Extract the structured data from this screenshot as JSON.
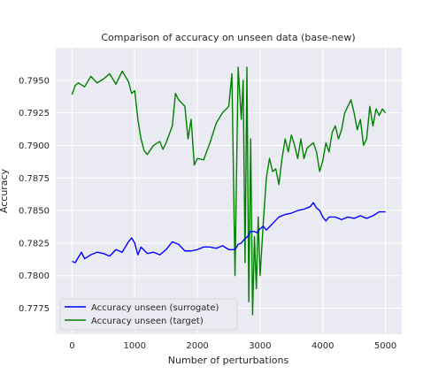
{
  "chart_data": {
    "type": "line",
    "title": "Comparison of accuracy on unseen data (base-new)",
    "xlabel": "Number of perturbations",
    "ylabel": "Accuracy",
    "xlim": [
      -260,
      5260
    ],
    "ylim": [
      0.7755,
      0.7975
    ],
    "xticks": [
      0,
      1000,
      2000,
      3000,
      4000,
      5000
    ],
    "yticks": [
      0.7775,
      0.78,
      0.7825,
      0.785,
      0.7875,
      0.79,
      0.7925,
      0.795
    ],
    "ytick_labels": [
      "0.7775",
      "0.7800",
      "0.7825",
      "0.7850",
      "0.7875",
      "0.7900",
      "0.7925",
      "0.7950"
    ],
    "grid": true,
    "legend_position": "lower-left",
    "series": [
      {
        "name": "Accuracy unseen (surrogate)",
        "color": "#0000ff",
        "x": [
          0,
          50,
          100,
          150,
          200,
          300,
          400,
          500,
          600,
          700,
          800,
          900,
          950,
          1000,
          1050,
          1100,
          1200,
          1300,
          1400,
          1500,
          1600,
          1700,
          1800,
          1900,
          2000,
          2100,
          2200,
          2300,
          2400,
          2500,
          2600,
          2650,
          2700,
          2750,
          2800,
          2850,
          2900,
          2950,
          3000,
          3050,
          3100,
          3200,
          3300,
          3400,
          3500,
          3600,
          3700,
          3800,
          3850,
          3900,
          3950,
          4000,
          4050,
          4100,
          4200,
          4300,
          4400,
          4500,
          4600,
          4700,
          4800,
          4900,
          5000
        ],
        "values": [
          0.7811,
          0.781,
          0.7814,
          0.7818,
          0.7813,
          0.7816,
          0.7818,
          0.7817,
          0.7815,
          0.782,
          0.7818,
          0.7826,
          0.7829,
          0.7825,
          0.7816,
          0.7822,
          0.7817,
          0.7818,
          0.7816,
          0.782,
          0.7826,
          0.7824,
          0.7819,
          0.7819,
          0.782,
          0.7822,
          0.7822,
          0.7821,
          0.7823,
          0.782,
          0.782,
          0.7824,
          0.7825,
          0.7828,
          0.783,
          0.7834,
          0.7834,
          0.7833,
          0.7836,
          0.7838,
          0.7835,
          0.784,
          0.7845,
          0.7847,
          0.7848,
          0.785,
          0.7851,
          0.7853,
          0.7856,
          0.7852,
          0.785,
          0.7845,
          0.7842,
          0.7845,
          0.7845,
          0.7843,
          0.7845,
          0.7844,
          0.7846,
          0.7844,
          0.7846,
          0.7849,
          0.7849
        ]
      },
      {
        "name": "Accuracy unseen (target)",
        "color": "#008000",
        "x": [
          0,
          50,
          100,
          200,
          300,
          400,
          500,
          600,
          700,
          800,
          900,
          950,
          1000,
          1050,
          1100,
          1150,
          1200,
          1300,
          1400,
          1450,
          1500,
          1600,
          1650,
          1700,
          1800,
          1850,
          1900,
          1950,
          2000,
          2100,
          2200,
          2300,
          2400,
          2500,
          2550,
          2600,
          2650,
          2700,
          2730,
          2760,
          2790,
          2820,
          2850,
          2880,
          2910,
          2940,
          2970,
          3000,
          3050,
          3100,
          3150,
          3200,
          3250,
          3300,
          3350,
          3400,
          3450,
          3500,
          3550,
          3600,
          3650,
          3700,
          3750,
          3800,
          3850,
          3900,
          3950,
          4000,
          4050,
          4100,
          4150,
          4200,
          4250,
          4300,
          4350,
          4400,
          4450,
          4500,
          4550,
          4600,
          4650,
          4700,
          4750,
          4800,
          4850,
          4900,
          4950,
          5000
        ],
        "values": [
          0.7939,
          0.7946,
          0.7948,
          0.7945,
          0.7953,
          0.7948,
          0.7951,
          0.7955,
          0.7947,
          0.7957,
          0.7949,
          0.794,
          0.7942,
          0.792,
          0.7905,
          0.7896,
          0.7893,
          0.79,
          0.7903,
          0.7897,
          0.7902,
          0.7915,
          0.794,
          0.7935,
          0.793,
          0.7905,
          0.792,
          0.7885,
          0.789,
          0.7889,
          0.7902,
          0.7917,
          0.7925,
          0.793,
          0.7955,
          0.78,
          0.796,
          0.792,
          0.795,
          0.781,
          0.796,
          0.778,
          0.7905,
          0.777,
          0.783,
          0.779,
          0.7845,
          0.78,
          0.784,
          0.7875,
          0.789,
          0.788,
          0.7882,
          0.787,
          0.789,
          0.7905,
          0.7895,
          0.7908,
          0.79,
          0.789,
          0.7905,
          0.789,
          0.7898,
          0.79,
          0.7902,
          0.7895,
          0.788,
          0.7888,
          0.7902,
          0.7895,
          0.791,
          0.7915,
          0.7905,
          0.7912,
          0.7925,
          0.793,
          0.7935,
          0.7925,
          0.7912,
          0.792,
          0.79,
          0.7905,
          0.793,
          0.7915,
          0.7928,
          0.7923,
          0.7928,
          0.7925
        ]
      }
    ]
  }
}
